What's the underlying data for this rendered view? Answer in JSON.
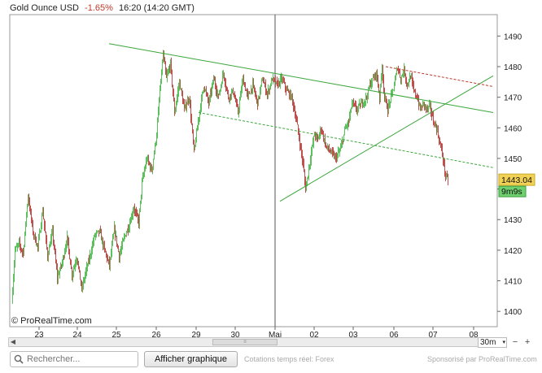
{
  "header": {
    "instrument": "Gold Ounce USD",
    "change": "-1.65%",
    "time": "16:20",
    "gmt": "(14:20 GMT)"
  },
  "colors": {
    "up": "#5cc15c",
    "down": "#c0504d",
    "trend": "#3aa63a",
    "resistance": "#c0392b",
    "price_tag": "#f2d255",
    "timer_tag": "#6fd06f"
  },
  "chart_data": {
    "type": "candlestick",
    "ylim": [
      1395,
      1497
    ],
    "y_ticks": [
      1400,
      1410,
      1420,
      1430,
      1440,
      1450,
      1460,
      1470,
      1480,
      1490
    ],
    "x_ticks": [
      "23",
      "24",
      "25",
      "26",
      "29",
      "30",
      "Mai",
      "02",
      "03",
      "06",
      "07",
      "08"
    ],
    "watermark": "© ProRealTime.com",
    "last_price": "1443.04",
    "timer": "9m9s",
    "price_path": [
      [
        0,
        1403
      ],
      [
        4,
        1420
      ],
      [
        9,
        1422
      ],
      [
        14,
        1419
      ],
      [
        20,
        1438
      ],
      [
        26,
        1426
      ],
      [
        32,
        1421
      ],
      [
        38,
        1433
      ],
      [
        44,
        1418
      ],
      [
        50,
        1426
      ],
      [
        56,
        1411
      ],
      [
        62,
        1416
      ],
      [
        68,
        1424
      ],
      [
        74,
        1412
      ],
      [
        80,
        1418
      ],
      [
        86,
        1407
      ],
      [
        90,
        1412
      ],
      [
        96,
        1418
      ],
      [
        102,
        1425
      ],
      [
        108,
        1426
      ],
      [
        114,
        1420
      ],
      [
        120,
        1415
      ],
      [
        126,
        1427
      ],
      [
        132,
        1418
      ],
      [
        138,
        1424
      ],
      [
        144,
        1428
      ],
      [
        150,
        1434
      ],
      [
        156,
        1429
      ],
      [
        160,
        1442
      ],
      [
        166,
        1450
      ],
      [
        172,
        1446
      ],
      [
        178,
        1458
      ],
      [
        182,
        1472
      ],
      [
        186,
        1484
      ],
      [
        190,
        1476
      ],
      [
        195,
        1481
      ],
      [
        200,
        1465
      ],
      [
        206,
        1475
      ],
      [
        212,
        1466
      ],
      [
        218,
        1470
      ],
      [
        224,
        1452
      ],
      [
        230,
        1464
      ],
      [
        236,
        1474
      ],
      [
        242,
        1468
      ],
      [
        248,
        1476
      ],
      [
        254,
        1470
      ],
      [
        260,
        1478
      ],
      [
        266,
        1470
      ],
      [
        272,
        1472
      ],
      [
        278,
        1465
      ],
      [
        284,
        1476
      ],
      [
        290,
        1470
      ],
      [
        296,
        1474
      ],
      [
        302,
        1468
      ],
      [
        308,
        1476
      ],
      [
        314,
        1471
      ],
      [
        320,
        1476
      ],
      [
        326,
        1474
      ],
      [
        332,
        1476
      ],
      [
        338,
        1472
      ],
      [
        344,
        1470
      ],
      [
        350,
        1462
      ],
      [
        354,
        1455
      ],
      [
        358,
        1448
      ],
      [
        361,
        1440
      ],
      [
        364,
        1445
      ],
      [
        368,
        1452
      ],
      [
        372,
        1458
      ],
      [
        376,
        1456
      ],
      [
        380,
        1460
      ],
      [
        386,
        1454
      ],
      [
        392,
        1452
      ],
      [
        398,
        1450
      ],
      [
        404,
        1453
      ],
      [
        410,
        1460
      ],
      [
        414,
        1462
      ],
      [
        418,
        1468
      ],
      [
        424,
        1466
      ],
      [
        430,
        1468
      ],
      [
        436,
        1470
      ],
      [
        440,
        1474
      ],
      [
        444,
        1476
      ],
      [
        448,
        1478
      ],
      [
        452,
        1470
      ],
      [
        455,
        1480
      ],
      [
        458,
        1470
      ],
      [
        462,
        1466
      ],
      [
        466,
        1470
      ],
      [
        470,
        1474
      ],
      [
        474,
        1480
      ],
      [
        478,
        1476
      ],
      [
        482,
        1479
      ],
      [
        486,
        1474
      ],
      [
        490,
        1477
      ],
      [
        494,
        1472
      ],
      [
        498,
        1470
      ],
      [
        502,
        1466
      ],
      [
        506,
        1468
      ],
      [
        510,
        1466
      ],
      [
        514,
        1467
      ],
      [
        518,
        1462
      ],
      [
        522,
        1460
      ],
      [
        526,
        1455
      ],
      [
        530,
        1450
      ],
      [
        533,
        1444
      ],
      [
        536,
        1443.04
      ]
    ],
    "lines": [
      {
        "name": "resistance-trendline",
        "style": "solid",
        "color": "#3aa63a",
        "points": [
          [
            120,
            1487.5
          ],
          [
            592,
            1465
          ]
        ]
      },
      {
        "name": "support-trendline",
        "style": "solid",
        "color": "#3aa63a",
        "points": [
          [
            330,
            1436
          ],
          [
            592,
            1477
          ]
        ]
      },
      {
        "name": "lower-channel-line",
        "style": "dashed",
        "color": "#3aa63a",
        "points": [
          [
            230,
            1465
          ],
          [
            592,
            1447
          ]
        ]
      },
      {
        "name": "upper-resistance-line",
        "style": "dashed",
        "color": "#c0392b",
        "points": [
          [
            460,
            1480
          ],
          [
            592,
            1473.5
          ]
        ]
      }
    ]
  },
  "controls": {
    "timeframe": "30m",
    "zoom_out": "−",
    "zoom_in": "+",
    "search_placeholder": "Rechercher...",
    "show_chart_button": "Afficher graphique",
    "quotes_note": "Cotations temps réel: Forex",
    "sponsor": "Sponsorisé par ProRealTime.com",
    "scroll_left": "◀",
    "scroll_right": "▶",
    "scroll_grip": "≡"
  }
}
